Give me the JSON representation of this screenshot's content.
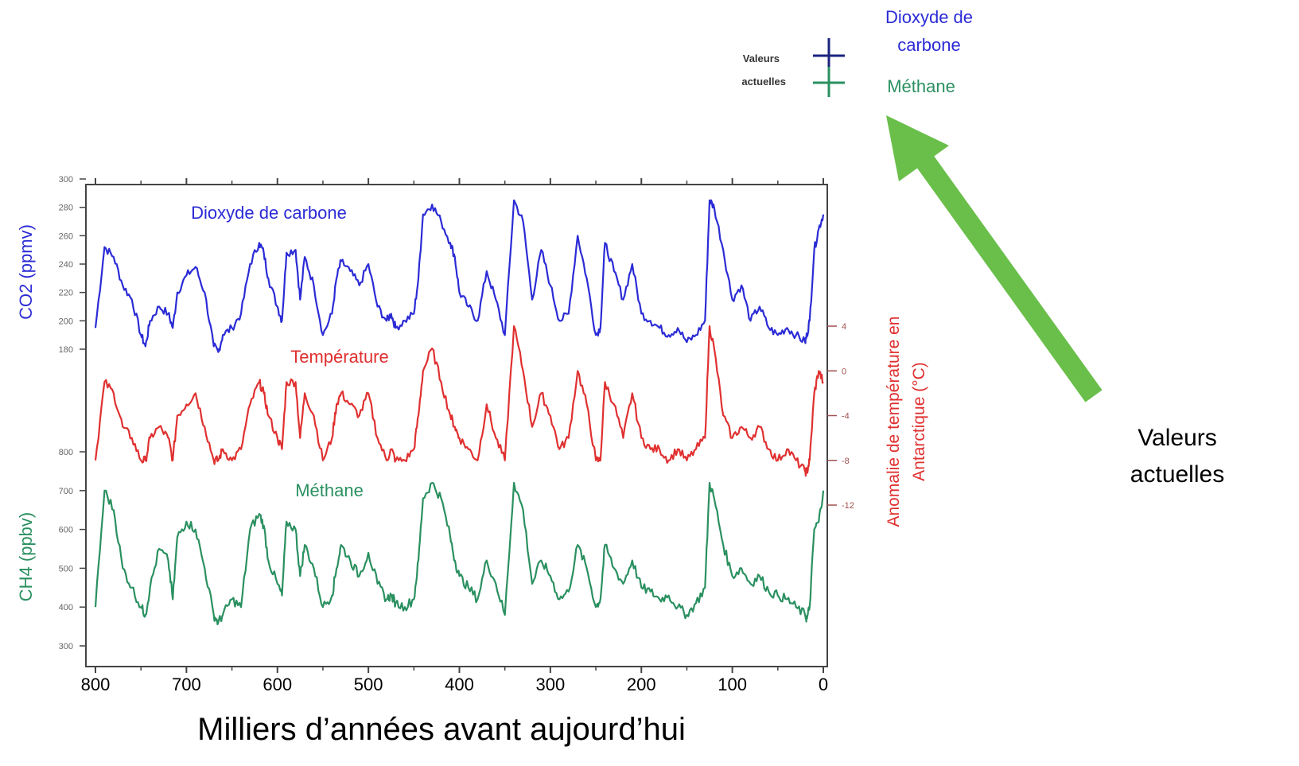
{
  "chart_data": {
    "type": "line",
    "xlabel": "Milliers d’années avant aujourd’hui",
    "xlim": [
      800,
      0
    ],
    "x_ticks": [
      "800",
      "700",
      "600",
      "500",
      "400",
      "300",
      "200",
      "100",
      "0"
    ],
    "x_ticks_values": [
      800,
      700,
      600,
      500,
      400,
      300,
      200,
      100,
      0
    ],
    "colors": {
      "co2": "#2b2bd6",
      "temp": "#e03030",
      "ch4": "#2a9060",
      "arrow": "#6abf4b",
      "frame": "#444444"
    },
    "series": [
      {
        "key": "co2",
        "name": "Dioxyde de carbone",
        "ylabel": "CO2 (ppmv)",
        "ylim": [
          180,
          300
        ],
        "yticks": [
          "300",
          "280",
          "260",
          "240",
          "220",
          "200",
          "180"
        ],
        "yticks_values": [
          300,
          280,
          260,
          240,
          220,
          200,
          180
        ],
        "x": [
          800,
          790,
          780,
          770,
          760,
          750,
          745,
          740,
          730,
          720,
          715,
          710,
          700,
          690,
          680,
          670,
          665,
          660,
          650,
          640,
          630,
          620,
          615,
          610,
          600,
          595,
          590,
          580,
          575,
          570,
          560,
          550,
          540,
          535,
          530,
          520,
          510,
          500,
          490,
          480,
          475,
          470,
          460,
          450,
          445,
          440,
          430,
          420,
          410,
          405,
          400,
          390,
          380,
          370,
          360,
          350,
          340,
          330,
          320,
          310,
          300,
          290,
          280,
          270,
          260,
          250,
          245,
          240,
          230,
          220,
          210,
          200,
          190,
          180,
          170,
          160,
          150,
          140,
          130,
          125,
          120,
          110,
          100,
          90,
          80,
          70,
          60,
          50,
          40,
          30,
          20,
          18,
          15,
          10,
          5,
          0
        ],
        "values": [
          195,
          252,
          245,
          225,
          215,
          190,
          182,
          200,
          210,
          205,
          195,
          220,
          232,
          238,
          220,
          182,
          178,
          190,
          195,
          205,
          240,
          255,
          248,
          230,
          210,
          200,
          248,
          250,
          215,
          245,
          225,
          190,
          205,
          230,
          242,
          235,
          225,
          240,
          210,
          200,
          205,
          195,
          200,
          205,
          230,
          275,
          282,
          270,
          255,
          245,
          220,
          210,
          200,
          235,
          215,
          190,
          285,
          270,
          215,
          250,
          225,
          200,
          205,
          260,
          230,
          190,
          195,
          255,
          235,
          215,
          240,
          205,
          200,
          195,
          190,
          195,
          185,
          190,
          200,
          285,
          280,
          250,
          215,
          225,
          200,
          210,
          195,
          190,
          195,
          190,
          185,
          190,
          200,
          250,
          265,
          275
        ]
      },
      {
        "key": "temp",
        "name": "Température",
        "ylabel": "Anomalie de température en Antarctique (°C)",
        "ylim": [
          -12,
          4
        ],
        "yticks": [
          "4",
          "0",
          "-4",
          "-8",
          "-12"
        ],
        "yticks_values": [
          4,
          0,
          -4,
          -8,
          -12
        ],
        "x": [
          800,
          790,
          780,
          770,
          760,
          750,
          745,
          740,
          730,
          720,
          715,
          710,
          700,
          690,
          680,
          670,
          665,
          660,
          650,
          640,
          630,
          620,
          615,
          610,
          600,
          595,
          590,
          580,
          575,
          570,
          560,
          550,
          540,
          535,
          530,
          520,
          510,
          500,
          490,
          480,
          475,
          470,
          460,
          450,
          445,
          440,
          430,
          420,
          410,
          405,
          400,
          390,
          380,
          370,
          360,
          350,
          340,
          330,
          320,
          310,
          300,
          290,
          280,
          270,
          260,
          250,
          245,
          240,
          230,
          220,
          210,
          200,
          190,
          180,
          170,
          160,
          150,
          140,
          130,
          125,
          120,
          110,
          100,
          90,
          80,
          70,
          60,
          50,
          40,
          30,
          20,
          18,
          15,
          10,
          5,
          0
        ],
        "values": [
          -8,
          -1,
          -2,
          -5,
          -6,
          -8,
          -8,
          -6,
          -5,
          -6,
          -8,
          -4,
          -3,
          -2,
          -5,
          -8,
          -8,
          -7,
          -8,
          -7,
          -3,
          -1,
          -2,
          -4,
          -6,
          -7,
          -1,
          -1,
          -6,
          -2,
          -4,
          -8,
          -6,
          -3,
          -2,
          -3,
          -4,
          -2,
          -6,
          -8,
          -7,
          -8,
          -8,
          -7,
          -4,
          0,
          2,
          -1,
          -4,
          -5,
          -6,
          -7,
          -8,
          -3,
          -6,
          -8,
          4,
          0,
          -5,
          -2,
          -4,
          -7,
          -6,
          0,
          -3,
          -8,
          -8,
          -1,
          -3,
          -6,
          -2,
          -6,
          -7,
          -7,
          -8,
          -7,
          -8,
          -7,
          -6,
          4,
          2,
          -4,
          -6,
          -5,
          -6,
          -5,
          -7,
          -8,
          -7,
          -8,
          -9,
          -9,
          -8,
          -2,
          0,
          -1
        ]
      },
      {
        "key": "ch4",
        "name": "Méthane",
        "ylabel": "CH4  (ppbv)",
        "ylim": [
          300,
          800
        ],
        "yticks": [
          "800",
          "700",
          "600",
          "500",
          "400",
          "300"
        ],
        "yticks_values": [
          800,
          700,
          600,
          500,
          400,
          300
        ],
        "x": [
          800,
          790,
          780,
          770,
          760,
          750,
          745,
          740,
          730,
          720,
          715,
          710,
          700,
          690,
          680,
          670,
          665,
          660,
          650,
          640,
          630,
          620,
          615,
          610,
          600,
          595,
          590,
          580,
          575,
          570,
          560,
          550,
          540,
          535,
          530,
          520,
          510,
          500,
          490,
          480,
          475,
          470,
          460,
          450,
          445,
          440,
          430,
          420,
          410,
          405,
          400,
          390,
          380,
          370,
          360,
          350,
          340,
          330,
          320,
          310,
          300,
          290,
          280,
          270,
          260,
          250,
          245,
          240,
          230,
          220,
          210,
          200,
          190,
          180,
          170,
          160,
          150,
          140,
          130,
          125,
          120,
          110,
          100,
          90,
          80,
          70,
          60,
          50,
          40,
          30,
          20,
          18,
          15,
          10,
          5,
          0
        ],
        "values": [
          400,
          700,
          650,
          500,
          450,
          400,
          380,
          450,
          550,
          520,
          420,
          580,
          620,
          600,
          500,
          380,
          360,
          380,
          420,
          400,
          600,
          640,
          610,
          520,
          460,
          430,
          620,
          600,
          480,
          560,
          500,
          400,
          430,
          500,
          560,
          520,
          480,
          540,
          460,
          420,
          430,
          410,
          400,
          420,
          520,
          680,
          720,
          680,
          580,
          520,
          480,
          450,
          420,
          520,
          460,
          380,
          720,
          650,
          460,
          520,
          480,
          420,
          440,
          560,
          500,
          400,
          420,
          560,
          500,
          460,
          520,
          450,
          440,
          420,
          430,
          400,
          380,
          410,
          450,
          720,
          680,
          560,
          480,
          500,
          460,
          480,
          440,
          430,
          420,
          400,
          380,
          370,
          400,
          600,
          620,
          700
        ]
      }
    ],
    "labels": {
      "co2_inline": "Dioxyde de carbone",
      "temp_inline": "Température",
      "ch4_inline": "Méthane"
    },
    "legend": {
      "valeurs_line1": "Valeurs",
      "valeurs_line2": "actuelles",
      "co2_line1": "Dioxyde de",
      "co2_line2": "carbone",
      "ch4": "Méthane",
      "placement": "top-right"
    },
    "annotation": {
      "line1": "Valeurs",
      "line2": "actuelles"
    },
    "grid": false
  }
}
